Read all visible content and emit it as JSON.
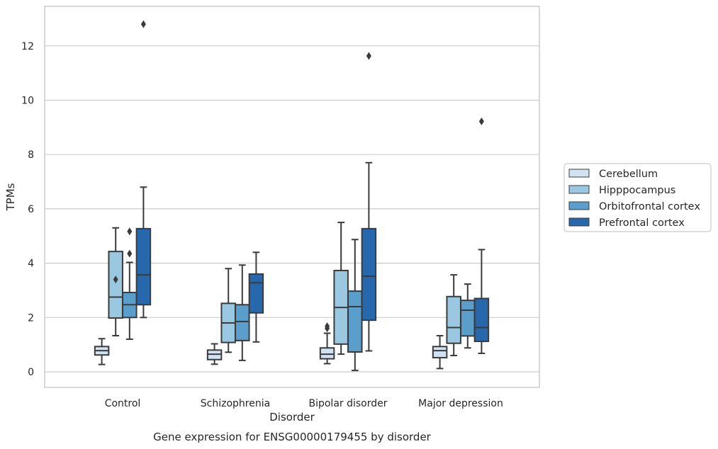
{
  "chart_data": {
    "type": "boxplot",
    "title": "Gene expression for ENSG00000179455 by disorder",
    "xlabel": "Disorder",
    "ylabel": "TPMs",
    "ylim": [
      -0.6,
      13.5
    ],
    "yticks": [
      0,
      2,
      4,
      6,
      8,
      10,
      12
    ],
    "grid": "horizontal",
    "legend_position": "right",
    "categories": [
      "Control",
      "Schizophrenia",
      "Bipolar disorder",
      "Major depression"
    ],
    "series": [
      {
        "name": "Cerebellum",
        "color": "#d1e2f2",
        "boxes": [
          {
            "whislo": 0.27,
            "q1": 0.62,
            "med": 0.78,
            "q3": 0.93,
            "whishi": 1.22,
            "fliers": []
          },
          {
            "whislo": 0.28,
            "q1": 0.45,
            "med": 0.65,
            "q3": 0.8,
            "whishi": 1.03,
            "fliers": []
          },
          {
            "whislo": 0.3,
            "q1": 0.48,
            "med": 0.65,
            "q3": 0.88,
            "whishi": 1.42,
            "fliers": [
              1.6,
              1.68
            ]
          },
          {
            "whislo": 0.12,
            "q1": 0.52,
            "med": 0.78,
            "q3": 0.93,
            "whishi": 1.33,
            "fliers": []
          }
        ]
      },
      {
        "name": "Hipppocampus",
        "color": "#9ac8e0",
        "boxes": [
          {
            "whislo": 1.33,
            "q1": 1.98,
            "med": 2.75,
            "q3": 4.43,
            "whishi": 5.3,
            "fliers": [
              3.4
            ]
          },
          {
            "whislo": 0.72,
            "q1": 1.08,
            "med": 1.8,
            "q3": 2.52,
            "whishi": 3.8,
            "fliers": []
          },
          {
            "whislo": 0.65,
            "q1": 1.02,
            "med": 2.37,
            "q3": 3.73,
            "whishi": 5.5,
            "fliers": []
          },
          {
            "whislo": 0.6,
            "q1": 1.05,
            "med": 1.63,
            "q3": 2.77,
            "whishi": 3.57,
            "fliers": []
          }
        ]
      },
      {
        "name": "Orbitofrontal cortex",
        "color": "#5a9fcc",
        "boxes": [
          {
            "whislo": 1.2,
            "q1": 2.0,
            "med": 2.47,
            "q3": 2.92,
            "whishi": 4.03,
            "fliers": [
              4.35,
              5.17
            ]
          },
          {
            "whislo": 0.42,
            "q1": 1.15,
            "med": 1.85,
            "q3": 2.47,
            "whishi": 3.93,
            "fliers": []
          },
          {
            "whislo": 0.05,
            "q1": 0.73,
            "med": 2.4,
            "q3": 2.97,
            "whishi": 4.87,
            "fliers": []
          },
          {
            "whislo": 0.88,
            "q1": 1.32,
            "med": 2.27,
            "q3": 2.63,
            "whishi": 3.23,
            "fliers": []
          }
        ]
      },
      {
        "name": "Prefrontal cortex",
        "color": "#2767ab",
        "boxes": [
          {
            "whislo": 2.0,
            "q1": 2.47,
            "med": 3.57,
            "q3": 5.27,
            "whishi": 6.8,
            "fliers": [
              12.8
            ]
          },
          {
            "whislo": 1.1,
            "q1": 2.17,
            "med": 3.28,
            "q3": 3.6,
            "whishi": 4.4,
            "fliers": []
          },
          {
            "whislo": 0.77,
            "q1": 1.9,
            "med": 3.52,
            "q3": 5.27,
            "whishi": 7.7,
            "fliers": [
              11.63
            ]
          },
          {
            "whislo": 0.68,
            "q1": 1.12,
            "med": 1.63,
            "q3": 2.7,
            "whishi": 4.5,
            "fliers": [
              9.22
            ]
          }
        ]
      }
    ]
  }
}
